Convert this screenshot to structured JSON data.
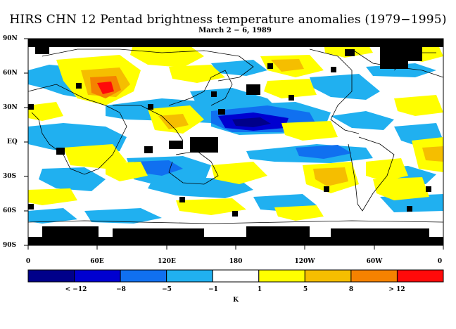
{
  "title": "HIRS CHN 12 Pentad brightness temperature anomalies (1979−1995)",
  "subtitle": "March 2 − 6, 1989",
  "latitude_labels": [
    "90N",
    "60N",
    "30N",
    "EQ",
    "30S",
    "60S",
    "90S"
  ],
  "longitude_labels": [
    "0",
    "60E",
    "120E",
    "180",
    "120W",
    "60W",
    "0"
  ],
  "colorbar": {
    "unit": "K",
    "labels": [
      "< −12",
      "−8",
      "−5",
      "−1",
      "1",
      "5",
      "8",
      "> 12"
    ],
    "colors": [
      "#00008a",
      "#0000d0",
      "#1070f0",
      "#20b0f0",
      "#ffffff",
      "#ffff00",
      "#f5be00",
      "#f58200",
      "#ff0a0a"
    ]
  }
}
